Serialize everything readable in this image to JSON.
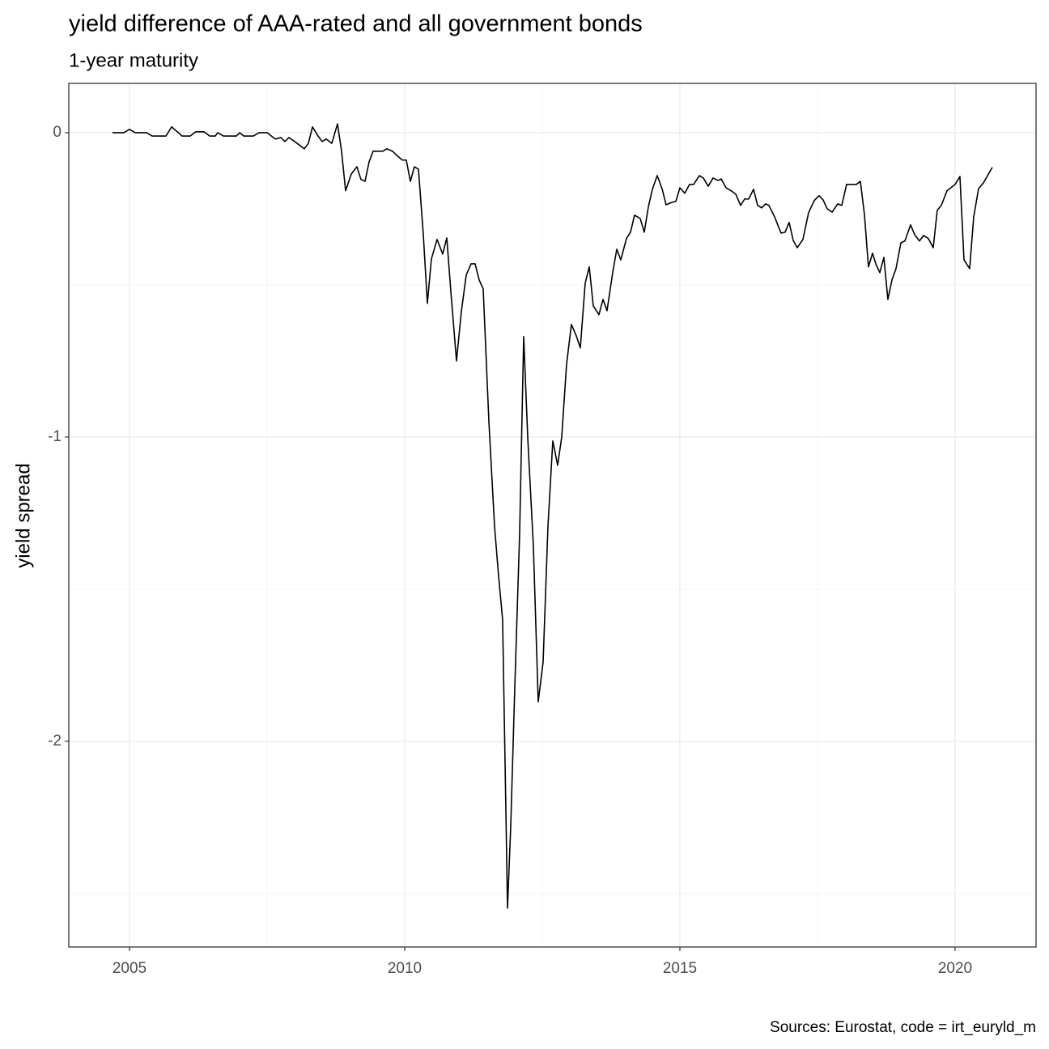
{
  "chart_data": {
    "type": "line",
    "title": "yield difference of AAA-rated and all government bonds",
    "subtitle": "1-year maturity",
    "y_label": "yield spread",
    "caption": "Sources: Eurostat, code = irt_euryld_m",
    "color": "#000000",
    "grid": true,
    "xlim": [
      2003.897,
      2021.471
    ],
    "xticks": [
      2005,
      2010,
      2015,
      2020
    ],
    "x_minor_ticks": [
      2007.5,
      2012.5,
      2017.5
    ],
    "ylim": [
      -2.676,
      0.162
    ],
    "yticks": [
      0,
      -1,
      -2
    ],
    "y_minor_ticks": [
      -0.5,
      -1.5,
      -2.5
    ],
    "x": [
      2004.691,
      2004.897,
      2005,
      2005.103,
      2005.309,
      2005.412,
      2005.662,
      2005.765,
      2005.956,
      2006.103,
      2006.206,
      2006.353,
      2006.456,
      2006.559,
      2006.603,
      2006.706,
      2006.941,
      2007.0,
      2007.074,
      2007.25,
      2007.353,
      2007.5,
      2007.647,
      2007.75,
      2007.824,
      2007.897,
      2008.0,
      2008.103,
      2008.176,
      2008.25,
      2008.324,
      2008.426,
      2008.5,
      2008.574,
      2008.676,
      2008.779,
      2008.853,
      2008.926,
      2009.029,
      2009.132,
      2009.206,
      2009.279,
      2009.353,
      2009.426,
      2009.603,
      2009.676,
      2009.779,
      2009.853,
      2009.956,
      2010.029,
      2010.103,
      2010.176,
      2010.25,
      2010.338,
      2010.412,
      2010.485,
      2010.588,
      2010.691,
      2010.765,
      2010.838,
      2010.941,
      2011.029,
      2011.118,
      2011.206,
      2011.279,
      2011.353,
      2011.426,
      2011.529,
      2011.632,
      2011.706,
      2011.779,
      2011.838,
      2011.868,
      2011.926,
      2012.0,
      2012.088,
      2012.162,
      2012.235,
      2012.338,
      2012.426,
      2012.515,
      2012.603,
      2012.691,
      2012.779,
      2012.853,
      2012.941,
      2013.029,
      2013.118,
      2013.191,
      2013.279,
      2013.353,
      2013.426,
      2013.529,
      2013.603,
      2013.676,
      2013.779,
      2013.853,
      2013.926,
      2014.029,
      2014.103,
      2014.176,
      2014.279,
      2014.353,
      2014.426,
      2014.5,
      2014.588,
      2014.676,
      2014.75,
      2014.853,
      2014.926,
      2015.0,
      2015.088,
      2015.176,
      2015.25,
      2015.353,
      2015.426,
      2015.515,
      2015.603,
      2015.691,
      2015.75,
      2015.838,
      2015.956,
      2016.015,
      2016.103,
      2016.176,
      2016.25,
      2016.338,
      2016.412,
      2016.485,
      2016.559,
      2016.618,
      2016.721,
      2016.838,
      2016.912,
      2016.985,
      2017.059,
      2017.132,
      2017.235,
      2017.338,
      2017.441,
      2017.529,
      2017.603,
      2017.676,
      2017.765,
      2017.868,
      2017.941,
      2018.029,
      2018.206,
      2018.279,
      2018.353,
      2018.426,
      2018.5,
      2018.559,
      2018.632,
      2018.706,
      2018.779,
      2018.853,
      2018.926,
      2019.015,
      2019.088,
      2019.191,
      2019.265,
      2019.353,
      2019.426,
      2019.515,
      2019.603,
      2019.676,
      2019.75,
      2019.853,
      2020.0,
      2020.088,
      2020.162,
      2020.265,
      2020.338,
      2020.426,
      2020.515,
      2020.676
    ],
    "values": [
      0,
      0,
      0.011,
      0,
      0,
      -0.011,
      -0.011,
      0.019,
      -0.011,
      -0.011,
      0.003,
      0.003,
      -0.011,
      -0.011,
      0,
      -0.011,
      -0.011,
      0,
      -0.011,
      -0.011,
      0,
      0,
      -0.021,
      -0.016,
      -0.029,
      -0.016,
      -0.029,
      -0.043,
      -0.053,
      -0.035,
      0.019,
      -0.011,
      -0.029,
      -0.021,
      -0.035,
      0.029,
      -0.061,
      -0.191,
      -0.136,
      -0.112,
      -0.154,
      -0.16,
      -0.096,
      -0.061,
      -0.061,
      -0.053,
      -0.061,
      -0.074,
      -0.09,
      -0.09,
      -0.16,
      -0.112,
      -0.12,
      -0.335,
      -0.561,
      -0.415,
      -0.351,
      -0.399,
      -0.346,
      -0.521,
      -0.75,
      -0.588,
      -0.468,
      -0.431,
      -0.431,
      -0.484,
      -0.513,
      -0.947,
      -1.293,
      -1.457,
      -1.601,
      -2.223,
      -2.548,
      -2.282,
      -1.824,
      -1.319,
      -0.67,
      -1.0,
      -1.359,
      -1.87,
      -1.739,
      -1.293,
      -1.013,
      -1.093,
      -1.0,
      -0.761,
      -0.63,
      -0.668,
      -0.707,
      -0.495,
      -0.441,
      -0.569,
      -0.598,
      -0.548,
      -0.585,
      -0.46,
      -0.383,
      -0.418,
      -0.348,
      -0.327,
      -0.271,
      -0.282,
      -0.327,
      -0.245,
      -0.186,
      -0.141,
      -0.184,
      -0.237,
      -0.229,
      -0.226,
      -0.181,
      -0.199,
      -0.17,
      -0.17,
      -0.141,
      -0.149,
      -0.176,
      -0.149,
      -0.157,
      -0.152,
      -0.181,
      -0.194,
      -0.202,
      -0.239,
      -0.218,
      -0.218,
      -0.186,
      -0.239,
      -0.247,
      -0.234,
      -0.239,
      -0.277,
      -0.33,
      -0.327,
      -0.295,
      -0.354,
      -0.378,
      -0.351,
      -0.263,
      -0.223,
      -0.207,
      -0.221,
      -0.25,
      -0.261,
      -0.234,
      -0.239,
      -0.17,
      -0.17,
      -0.16,
      -0.269,
      -0.441,
      -0.396,
      -0.431,
      -0.46,
      -0.41,
      -0.548,
      -0.484,
      -0.447,
      -0.362,
      -0.356,
      -0.303,
      -0.335,
      -0.356,
      -0.338,
      -0.348,
      -0.378,
      -0.255,
      -0.239,
      -0.191,
      -0.17,
      -0.144,
      -0.418,
      -0.447,
      -0.277,
      -0.184,
      -0.165,
      -0.114
    ]
  }
}
